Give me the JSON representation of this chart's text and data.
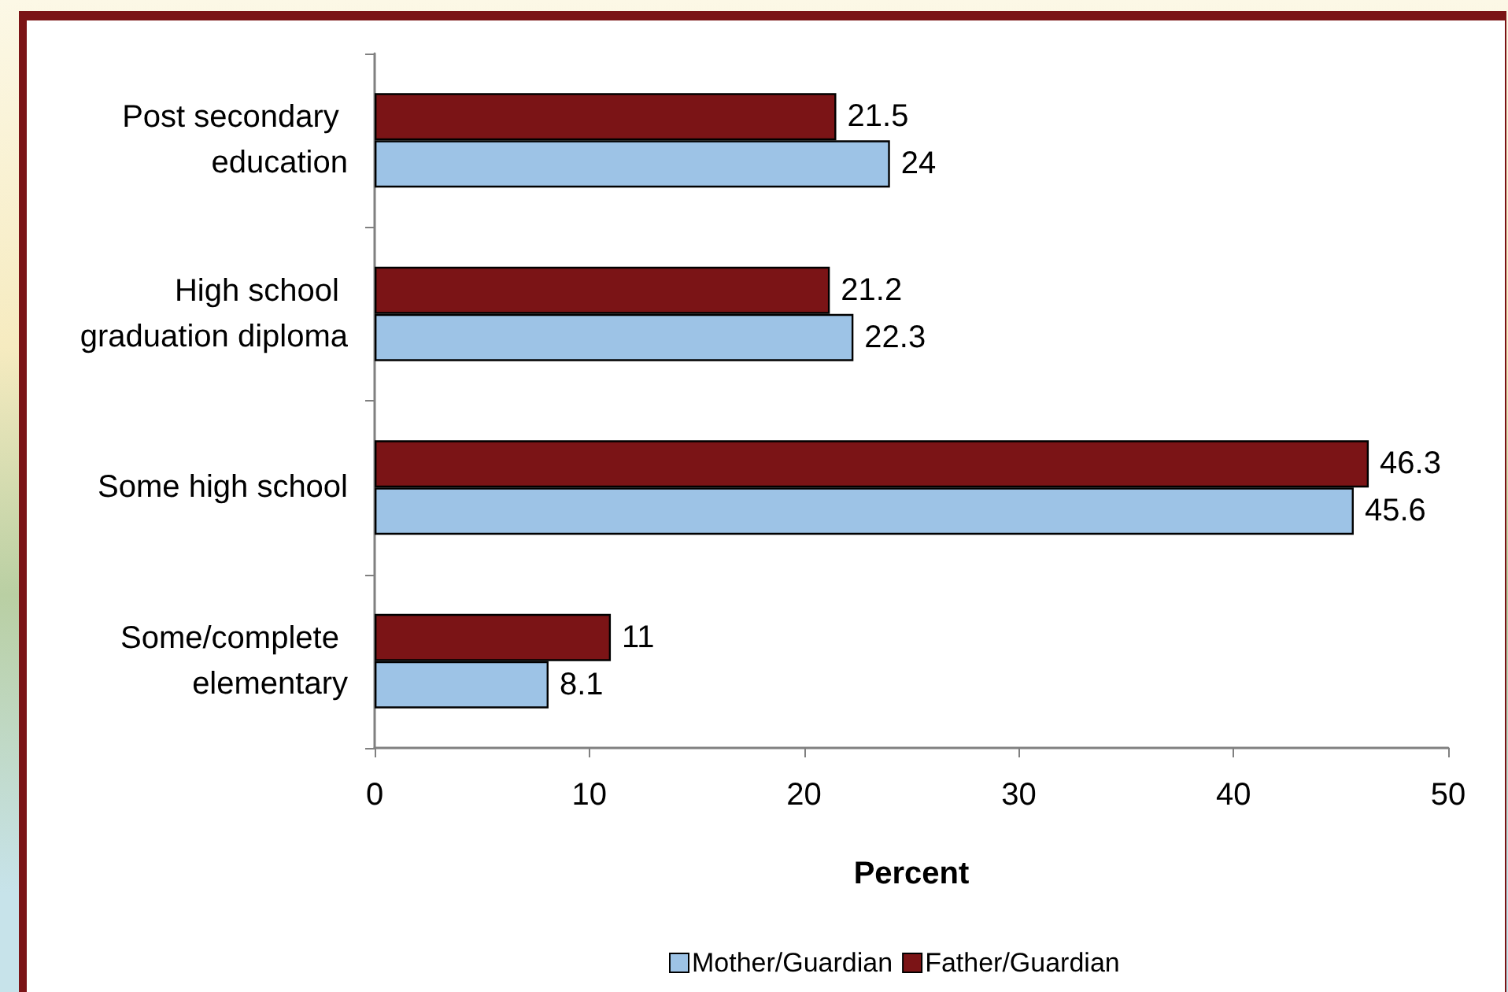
{
  "chart_data": {
    "type": "bar",
    "orientation": "horizontal",
    "categories": [
      "Post secondary education",
      "High school graduation diploma",
      "Some high school",
      "Some/complete elementary"
    ],
    "series": [
      {
        "name": "Mother/Guardian",
        "color": "#9dc3e6",
        "values": [
          24,
          22.3,
          45.6,
          8.1
        ]
      },
      {
        "name": "Father/Guardian",
        "color": "#7b1416",
        "values": [
          21.5,
          21.2,
          46.3,
          11
        ]
      }
    ],
    "xlabel": "Percent",
    "xlim": [
      0,
      50
    ],
    "xticks": [
      0,
      10,
      20,
      30,
      40,
      50
    ],
    "data_labels": true,
    "legend": "bottom",
    "grid": false
  }
}
